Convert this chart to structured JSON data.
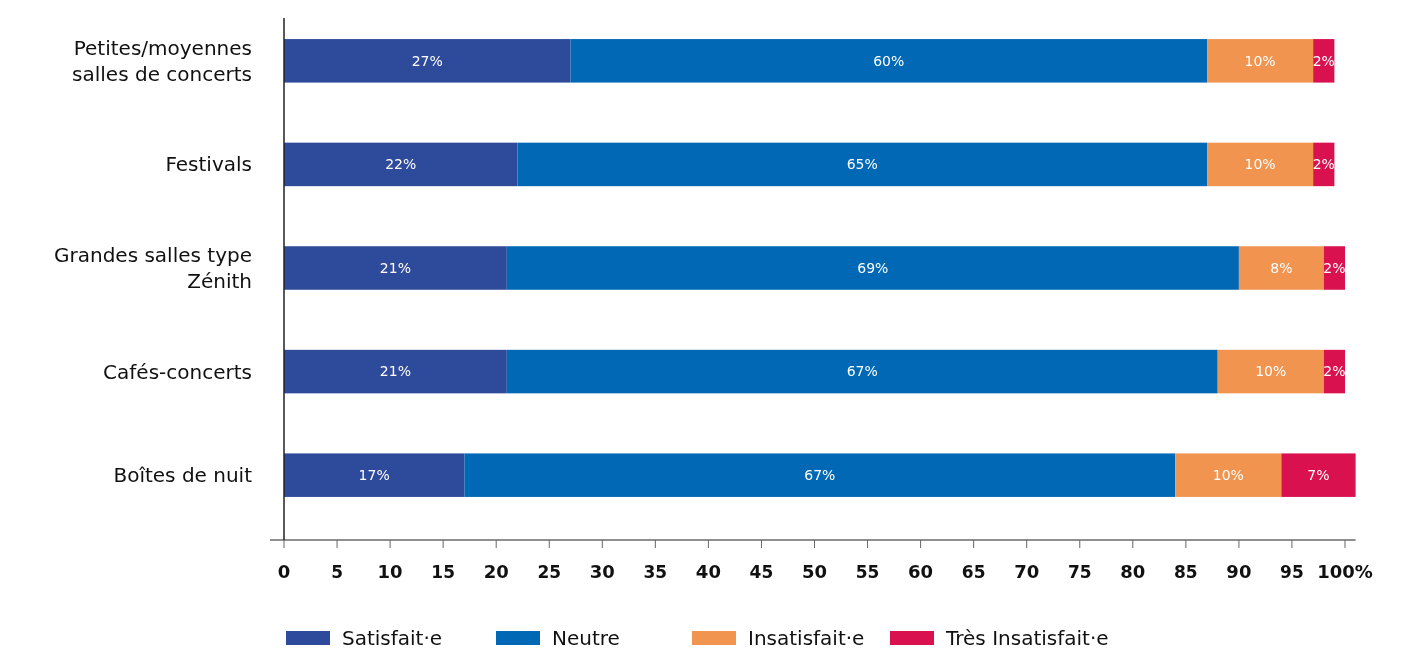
{
  "chart_data": {
    "type": "bar",
    "orientation": "horizontal",
    "stacked": true,
    "legend": "bottom",
    "grid": false,
    "categories": [
      "Petites/moyennes salles de concerts",
      "Festivals",
      "Grandes salles type Zénith",
      "Cafés-concerts",
      "Boîtes de nuit"
    ],
    "series": [
      {
        "name": "Satisfait·e",
        "color": "#2e4a9a",
        "values": [
          27,
          22,
          21,
          21,
          17
        ],
        "value_labels": [
          "27%",
          "22%",
          "21%",
          "21%",
          "17%"
        ]
      },
      {
        "name": "Neutre",
        "color": "#0068b4",
        "values": [
          60,
          65,
          69,
          67,
          67
        ],
        "value_labels": [
          "60%",
          "65%",
          "69%",
          "67%",
          "67%"
        ]
      },
      {
        "name": "Insatisfait·e",
        "color": "#f09450",
        "values": [
          10,
          10,
          8,
          10,
          10
        ],
        "value_labels": [
          "10%",
          "10%",
          "8%",
          "10%",
          "10%"
        ]
      },
      {
        "name": "Très Insatisfait·e",
        "color": "#d9114f",
        "values": [
          2,
          2,
          2,
          2,
          7
        ],
        "value_labels": [
          "2%",
          "2%",
          "2%",
          "2%",
          "7%"
        ]
      }
    ],
    "xlim": [
      0,
      101
    ],
    "xticks": [
      0,
      5,
      10,
      15,
      20,
      25,
      30,
      35,
      40,
      45,
      50,
      55,
      60,
      65,
      70,
      75,
      80,
      85,
      90,
      95,
      {
        "value": 100,
        "label": "100%"
      }
    ]
  }
}
